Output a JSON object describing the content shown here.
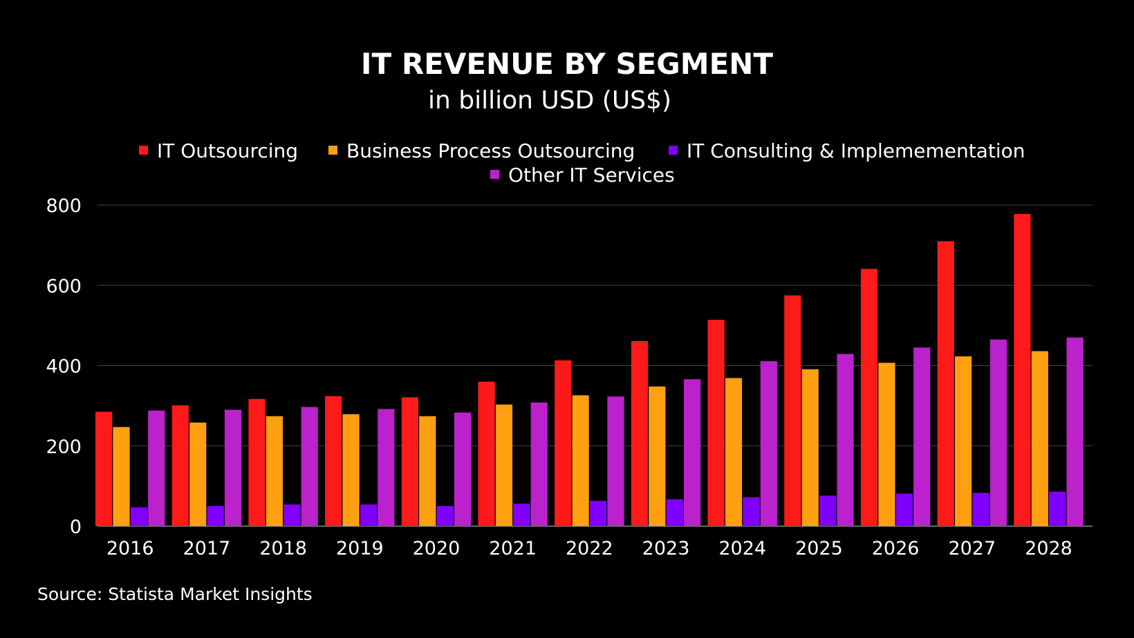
{
  "chart_data": {
    "type": "bar",
    "title": "IT REVENUE BY SEGMENT",
    "subtitle": "in billion USD (US$)",
    "source": "Source:  Statista Market Insights",
    "categories": [
      "2016",
      "2017",
      "2018",
      "2019",
      "2020",
      "2021",
      "2022",
      "2023",
      "2024",
      "2025",
      "2026",
      "2027",
      "2028"
    ],
    "series": [
      {
        "name": "IT Outsourcing",
        "color": "#ff1a1a",
        "values": [
          285,
          301,
          317,
          324,
          321,
          360,
          413,
          461,
          514,
          575,
          641,
          710,
          778
        ]
      },
      {
        "name": "Business Process Outsourcing",
        "color": "#ffa010",
        "values": [
          247,
          258,
          274,
          279,
          274,
          303,
          326,
          348,
          369,
          391,
          407,
          423,
          436
        ]
      },
      {
        "name": "IT Consulting & Implemementation",
        "color": "#7f00ff",
        "values": [
          47,
          50,
          54,
          54,
          50,
          56,
          63,
          67,
          72,
          76,
          81,
          83,
          86
        ]
      },
      {
        "name": "Other IT Services",
        "color": "#bb22cc",
        "values": [
          288,
          290,
          297,
          292,
          283,
          308,
          323,
          366,
          411,
          429,
          445,
          465,
          470
        ]
      }
    ],
    "ylim": [
      0,
      800
    ],
    "yticks": [
      0,
      200,
      400,
      600,
      800
    ],
    "grid": true,
    "legend_position": "top"
  }
}
